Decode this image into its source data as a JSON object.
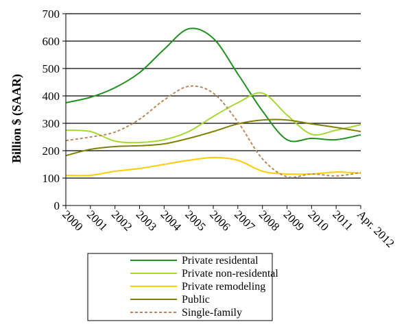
{
  "chart_data": {
    "type": "line",
    "title": "",
    "xlabel": "",
    "ylabel": "Billion $ (SAAR)",
    "ylim": [
      0,
      700
    ],
    "yticks": [
      0,
      100,
      200,
      300,
      400,
      500,
      600,
      700
    ],
    "grid": true,
    "legend_position": "bottom",
    "categories": [
      "2000",
      "2001",
      "2002",
      "2003",
      "2004",
      "2005",
      "2006",
      "2007",
      "2008",
      "2009",
      "2010",
      "2011",
      "Apr. 2012"
    ],
    "series": [
      {
        "name": "Private residental",
        "color": "#1f8f1f",
        "dash": "solid",
        "values": [
          375,
          395,
          430,
          485,
          570,
          645,
          610,
          480,
          345,
          240,
          245,
          240,
          258
        ]
      },
      {
        "name": "Private non-residental",
        "color": "#a6d832",
        "dash": "solid",
        "values": [
          275,
          270,
          235,
          230,
          240,
          270,
          325,
          375,
          410,
          330,
          260,
          275,
          295
        ]
      },
      {
        "name": "Private remodeling",
        "color": "#ffcc00",
        "dash": "solid",
        "values": [
          110,
          110,
          125,
          135,
          150,
          165,
          175,
          165,
          125,
          115,
          115,
          122,
          118
        ]
      },
      {
        "name": "Public",
        "color": "#808000",
        "dash": "solid",
        "values": [
          182,
          205,
          215,
          218,
          225,
          245,
          270,
          298,
          312,
          312,
          298,
          285,
          270
        ]
      },
      {
        "name": "Single-family",
        "color": "#b5875a",
        "dash": "dashed",
        "values": [
          237,
          250,
          268,
          315,
          385,
          435,
          410,
          305,
          170,
          105,
          115,
          108,
          120
        ]
      }
    ]
  }
}
